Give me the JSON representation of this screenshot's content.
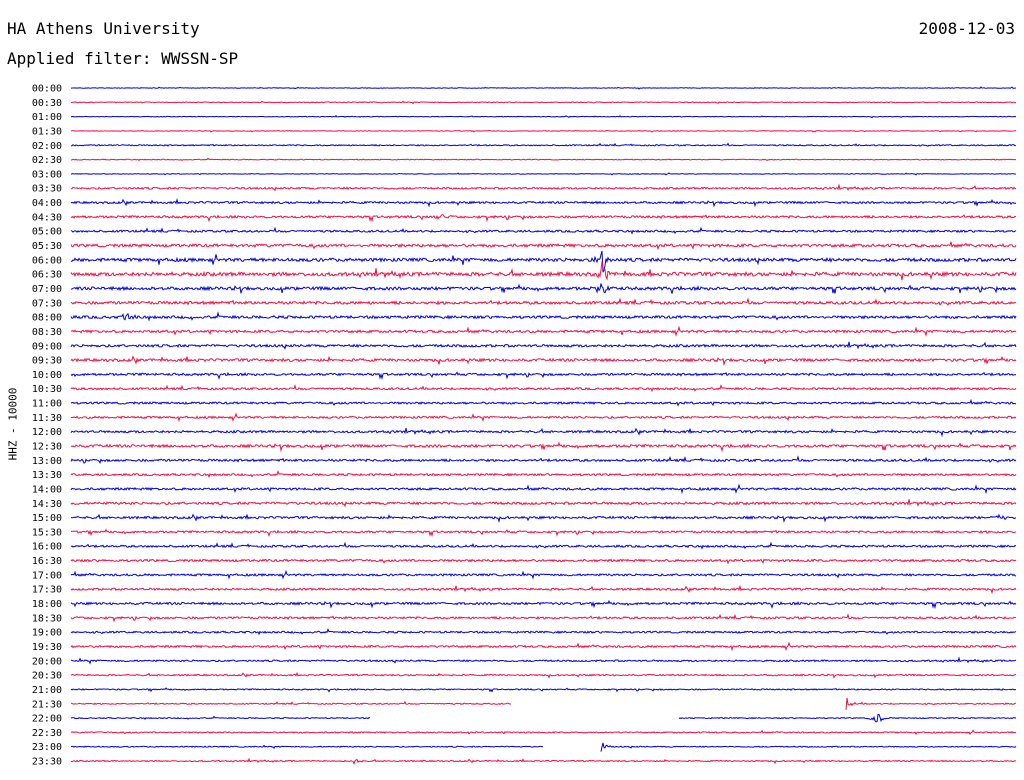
{
  "header": {
    "station": "HA Athens University",
    "date": "2008-12-03",
    "filter": "Applied filter: WWSSN-SP"
  },
  "channel_label": "HHZ - 10000",
  "colors": {
    "blue": "#0000dd",
    "red": "#ee1144"
  },
  "chart_data": {
    "type": "line",
    "title": "HA Athens University",
    "subtitle": "Applied filter: WWSSN-SP",
    "ylabel": "HHZ - 10000",
    "row_labels": [
      "00:00",
      "00:30",
      "01:00",
      "01:30",
      "02:00",
      "02:30",
      "03:00",
      "03:30",
      "04:00",
      "04:30",
      "05:00",
      "05:30",
      "06:00",
      "06:30",
      "07:00",
      "07:30",
      "08:00",
      "08:30",
      "09:00",
      "09:30",
      "10:00",
      "10:30",
      "11:00",
      "11:30",
      "12:00",
      "12:30",
      "13:00",
      "13:30",
      "14:00",
      "14:30",
      "15:00",
      "15:30",
      "16:00",
      "16:30",
      "17:00",
      "17:30",
      "18:00",
      "18:30",
      "19:00",
      "19:30",
      "20:00",
      "20:30",
      "21:00",
      "21:30",
      "22:00",
      "22:30",
      "23:00",
      "23:30"
    ],
    "x_unit": "minutes",
    "xlim": [
      0,
      30
    ],
    "row_noise": [
      0.3,
      0.4,
      0.3,
      0.3,
      0.6,
      0.4,
      0.3,
      0.9,
      1.0,
      1.1,
      1.0,
      1.4,
      1.6,
      1.8,
      1.5,
      1.4,
      1.3,
      1.2,
      1.2,
      1.3,
      1.1,
      1.0,
      1.0,
      1.0,
      1.1,
      1.3,
      1.1,
      1.0,
      1.1,
      1.2,
      1.1,
      1.0,
      1.0,
      1.1,
      1.0,
      1.0,
      1.1,
      1.0,
      0.9,
      1.0,
      0.8,
      0.7,
      0.6,
      0.6,
      0.5,
      0.6,
      0.5,
      0.6
    ],
    "events": [
      {
        "row": 12,
        "minute": 16.9,
        "amplitude": 14
      },
      {
        "row": 13,
        "minute": 16.9,
        "amplitude": 12
      },
      {
        "row": 14,
        "minute": 16.9,
        "amplitude": 8
      },
      {
        "row": 16,
        "minute": 1.8,
        "amplitude": 6
      },
      {
        "row": 9,
        "minute": 11.8,
        "amplitude": 4
      },
      {
        "row": 30,
        "minute": 29.5,
        "amplitude": 4
      },
      {
        "row": 43,
        "minute": 24.6,
        "amplitude": 8
      },
      {
        "row": 44,
        "minute": 25.6,
        "amplitude": 7
      },
      {
        "row": 46,
        "minute": 16.8,
        "amplitude": 9
      },
      {
        "row": 47,
        "minute": 9.0,
        "amplitude": 3
      }
    ],
    "gaps": [
      {
        "row": 43,
        "start": 14.0,
        "end": 24.6
      },
      {
        "row": 44,
        "start": 9.5,
        "end": 19.3
      },
      {
        "row": 46,
        "start": 15.0,
        "end": 16.8
      }
    ]
  }
}
